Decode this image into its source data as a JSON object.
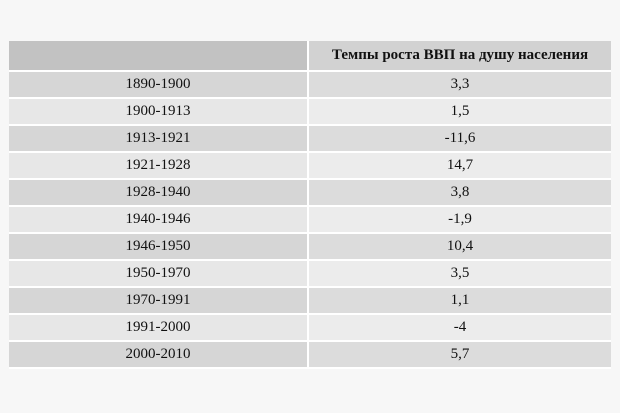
{
  "table": {
    "headers": [
      "",
      "Темпы роста ВВП на душу населения"
    ],
    "rows": [
      {
        "period": "1890-1900",
        "value": "3,3"
      },
      {
        "period": "1900-1913",
        "value": "1,5"
      },
      {
        "period": "1913-1921",
        "value": "-11,6"
      },
      {
        "period": "1921-1928",
        "value": "14,7"
      },
      {
        "period": "1928-1940",
        "value": "3,8"
      },
      {
        "period": "1940-1946",
        "value": "-1,9"
      },
      {
        "period": "1946-1950",
        "value": "10,4"
      },
      {
        "period": "1950-1970",
        "value": "3,5"
      },
      {
        "period": "1970-1991",
        "value": "1,1"
      },
      {
        "period": "1991-2000",
        "value": "-4"
      },
      {
        "period": "2000-2010",
        "value": "5,7"
      }
    ]
  }
}
